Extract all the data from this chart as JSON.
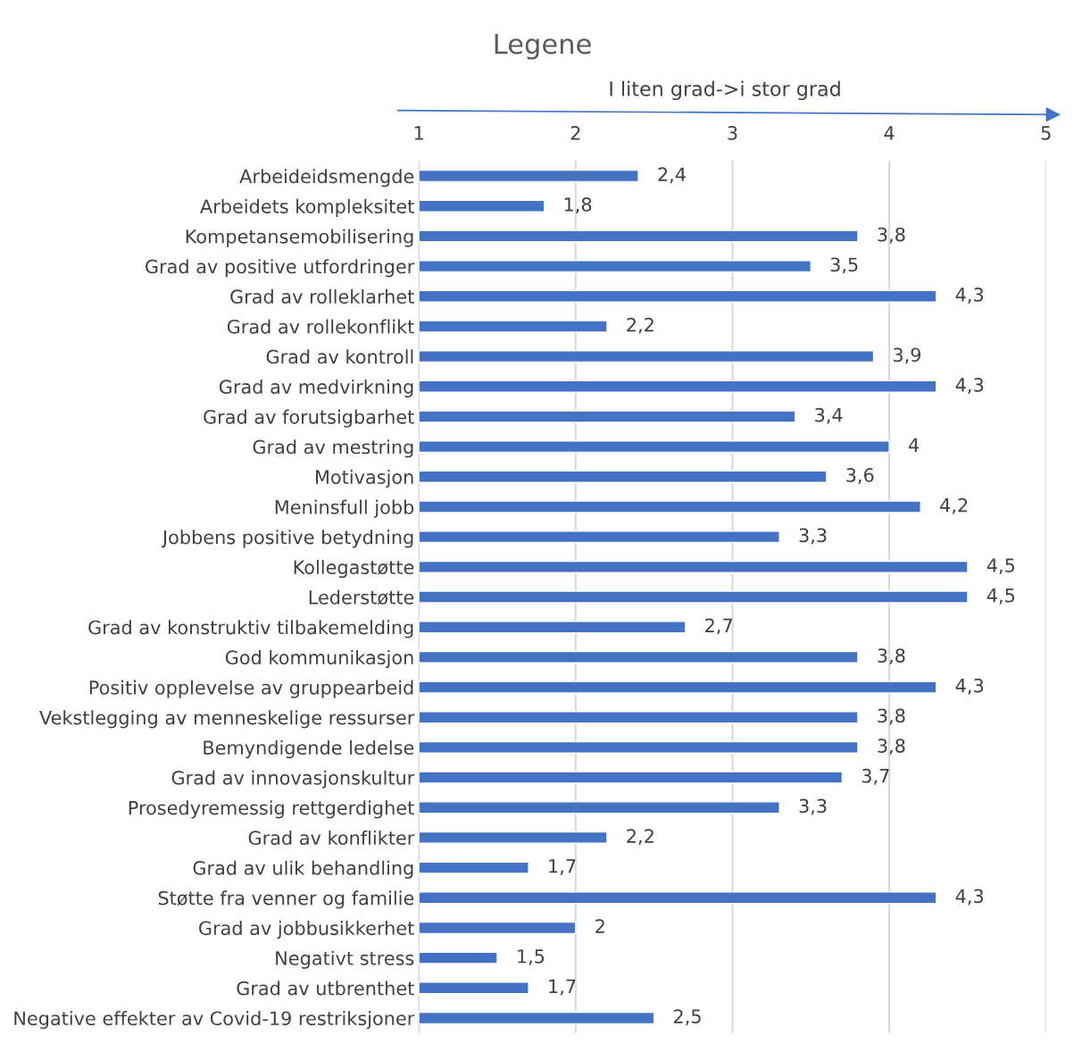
{
  "chart_data": {
    "type": "bar",
    "orientation": "horizontal",
    "title": "Legene",
    "annotations": [
      "I liten grad->i stor grad"
    ],
    "categories": [
      "Arbeideidsmengde",
      "Arbeidets kompleksitet",
      "Kompetansemobilisering",
      "Grad av positive utfordringer",
      "Grad av rolleklarhet",
      "Grad av rollekonflikt",
      "Grad av kontroll",
      "Grad av medvirkning",
      "Grad av forutsigbarhet",
      "Grad av mestring",
      "Motivasjon",
      "Meninsfull jobb",
      "Jobbens positive betydning",
      "Kollegastøtte",
      "Lederstøtte",
      "Grad av konstruktiv tilbakemelding",
      "God kommunikasjon",
      "Positiv opplevelse av gruppearbeid",
      "Vekstlegging av menneskelige ressurser",
      "Bemyndigende ledelse",
      "Grad av innovasjonskultur",
      "Prosedyremessig rettgerdighet",
      "Grad av konflikter",
      "Grad av ulik behandling",
      "Støtte fra venner og familie",
      "Grad av jobbusikkerhet",
      "Negativt stress",
      "Grad av utbrenthet",
      "Negative effekter av Covid-19 restriksjoner"
    ],
    "values": [
      2.4,
      1.8,
      3.8,
      3.5,
      4.3,
      2.2,
      3.9,
      4.3,
      3.4,
      4,
      3.6,
      4.2,
      3.3,
      4.5,
      4.5,
      2.7,
      3.8,
      4.3,
      3.8,
      3.8,
      3.7,
      3.3,
      2.2,
      1.7,
      4.3,
      2,
      1.5,
      1.7,
      2.5
    ],
    "value_labels": [
      "2,4",
      "1,8",
      "3,8",
      "3,5",
      "4,3",
      "2,2",
      "3,9",
      "4,3",
      "3,4",
      "4",
      "3,6",
      "4,2",
      "3,3",
      "4,5",
      "4,5",
      "2,7",
      "3,8",
      "4,3",
      "3,8",
      "3,8",
      "3,7",
      "3,3",
      "2,2",
      "1,7",
      "4,3",
      "2",
      "1,5",
      "1,7",
      "2,5"
    ],
    "color": "#4472c4",
    "xlim": [
      1,
      5
    ],
    "xticks": [
      1,
      2,
      3,
      4,
      5
    ],
    "grid": "x",
    "legend": false
  }
}
